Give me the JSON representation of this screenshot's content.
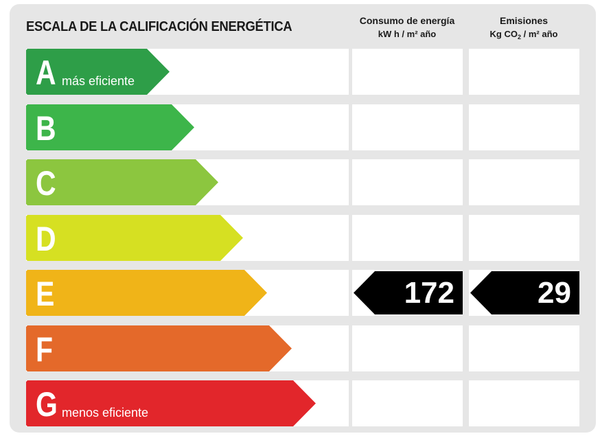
{
  "title": "ESCALA DE LA CALIFICACIÓN ENERGÉTICA",
  "columns": {
    "consumption": {
      "label": "Consumo de energía",
      "unit": "kW h / m² año"
    },
    "emissions": {
      "label": "Emisiones",
      "unit_prefix": "Kg CO",
      "unit_sub": "2",
      "unit_suffix": " / m² año"
    }
  },
  "chart_data": {
    "type": "table",
    "title": "ESCALA DE LA CALIFICACIÓN ENERGÉTICA",
    "classes": [
      {
        "letter": "A",
        "label": "más eficiente",
        "color": "#2e9e48"
      },
      {
        "letter": "B",
        "label": "",
        "color": "#3db54a"
      },
      {
        "letter": "C",
        "label": "",
        "color": "#8cc63f"
      },
      {
        "letter": "D",
        "label": "",
        "color": "#d6e022"
      },
      {
        "letter": "E",
        "label": "",
        "color": "#f0b418"
      },
      {
        "letter": "F",
        "label": "",
        "color": "#e4692a"
      },
      {
        "letter": "G",
        "label": "menos eficiente",
        "color": "#e2262b"
      }
    ],
    "rating": {
      "class": "E",
      "consumption": "172",
      "emissions": "29"
    }
  }
}
